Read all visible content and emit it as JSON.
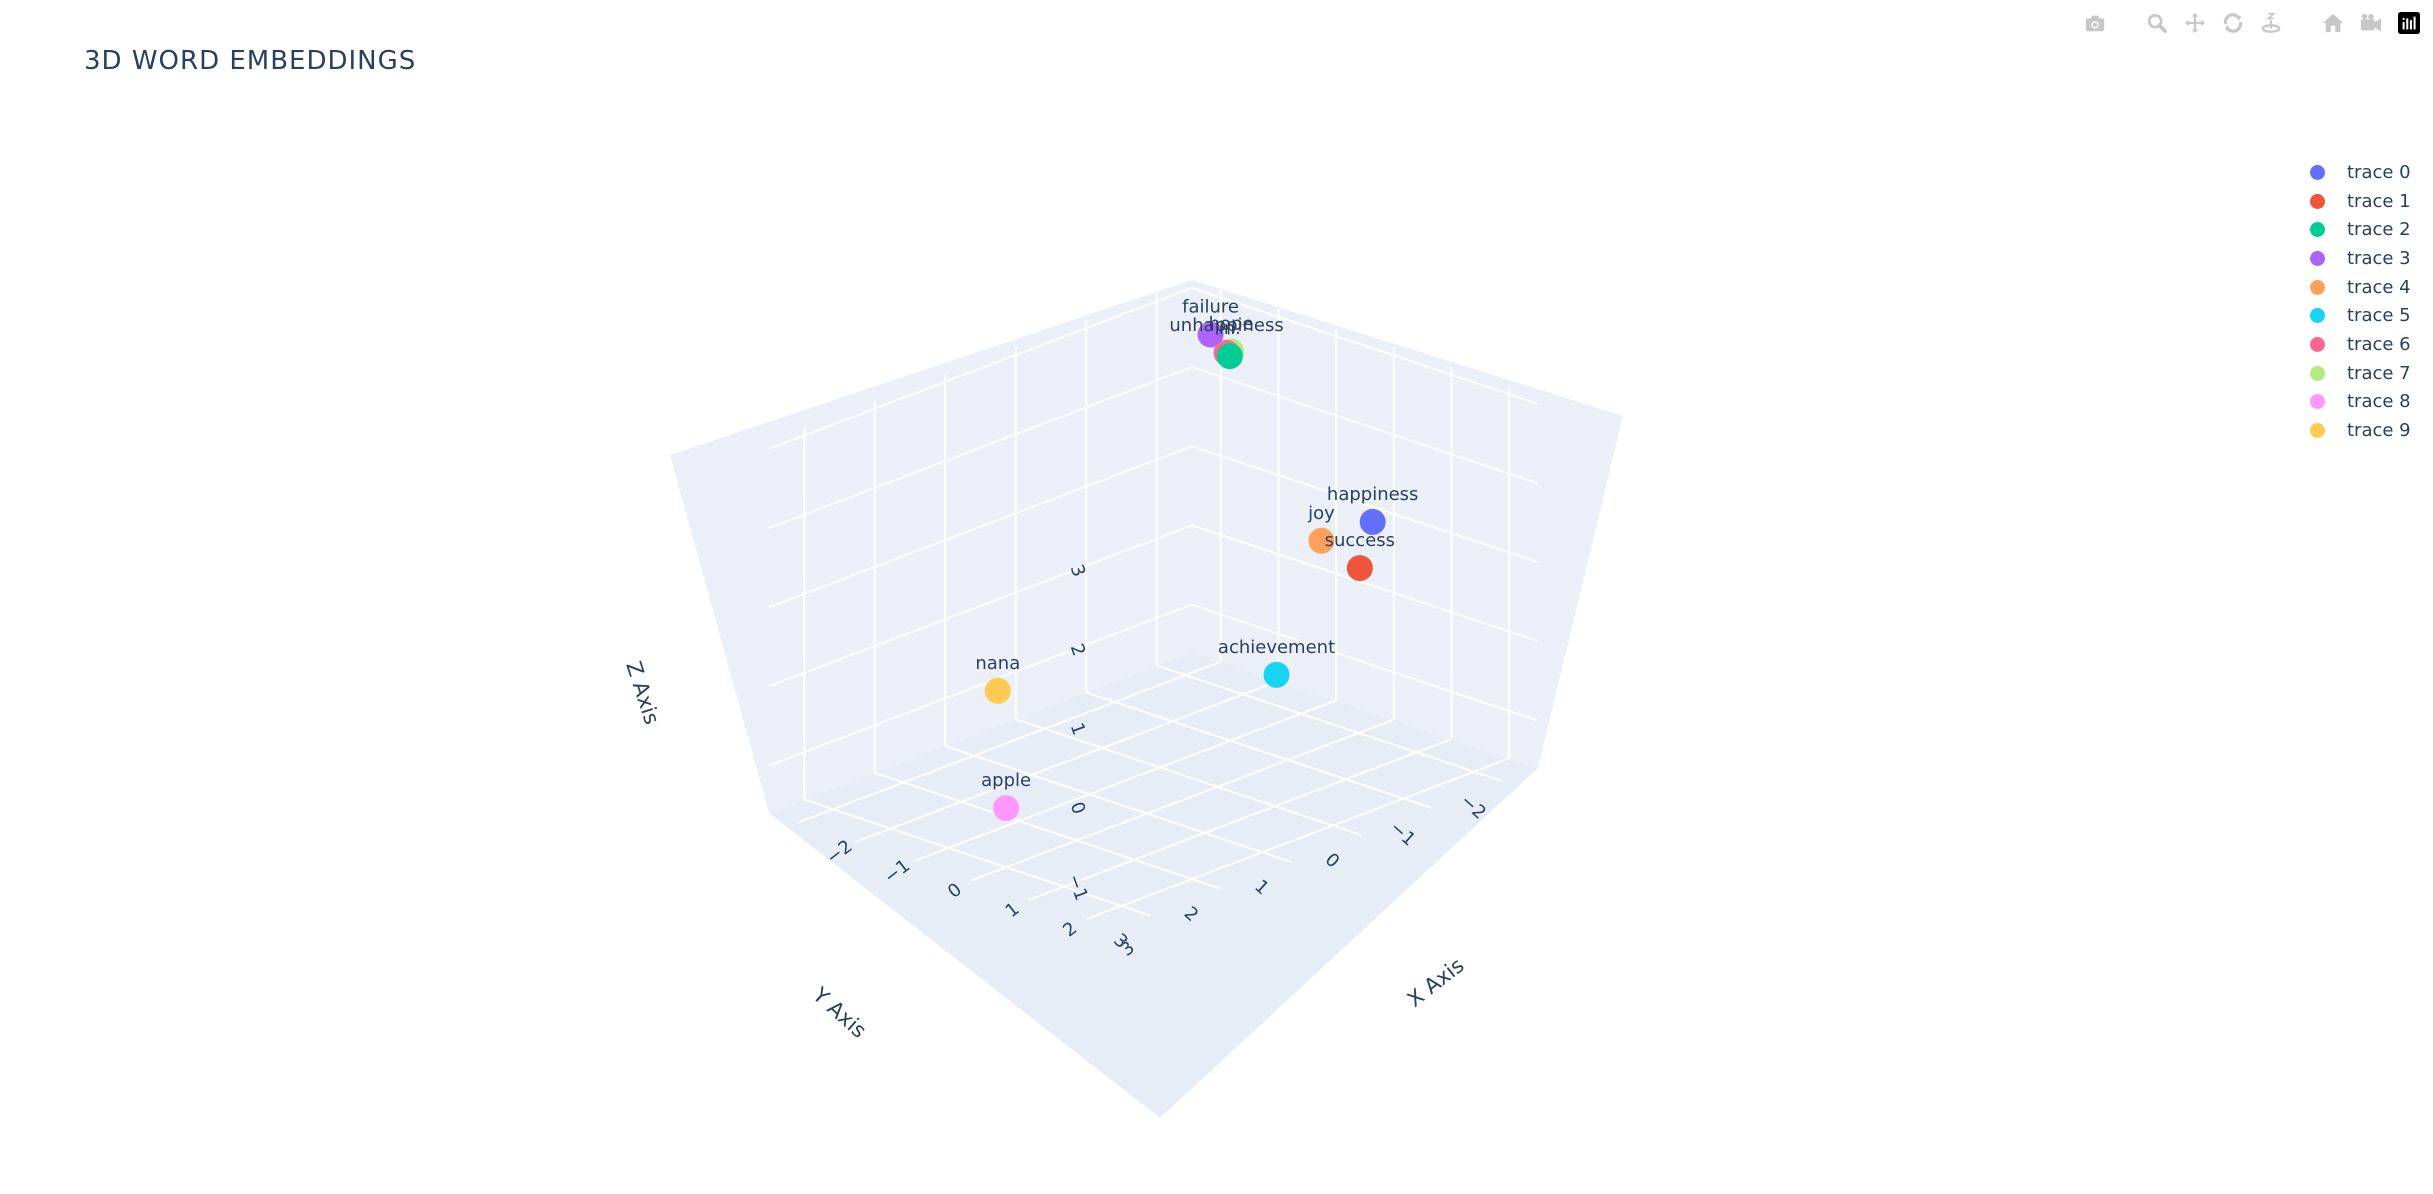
{
  "chart_data": {
    "type": "scatter3d",
    "title": "3D WORD EMBEDDINGS",
    "axes": {
      "x": {
        "label": "X Axis",
        "range": [
          -2.5,
          3.5
        ],
        "ticks": [
          -2,
          -1,
          0,
          1,
          2,
          3
        ],
        "tick_labels": [
          "−2",
          "−1",
          "0",
          "1",
          "2",
          "3"
        ]
      },
      "y": {
        "label": "Y Axis",
        "range": [
          -2.5,
          3.5
        ],
        "ticks": [
          -2,
          -1,
          0,
          1,
          2,
          3
        ],
        "tick_labels": [
          "−2",
          "−1",
          "0",
          "1",
          "2",
          "3"
        ]
      },
      "z": {
        "label": "Z Axis",
        "range": [
          -1.6,
          3.1
        ],
        "ticks": [
          -1,
          0,
          1,
          2,
          3
        ],
        "tick_labels": [
          "−1",
          "0",
          "1",
          "2",
          "3"
        ]
      }
    },
    "grid": true,
    "legend_position": "top-right",
    "series": [
      {
        "name": "trace 0",
        "text": "happiness",
        "color": "#636efa",
        "x": 1.0,
        "y": -2.2,
        "z": 1.0
      },
      {
        "name": "trace 1",
        "text": "success",
        "color": "#EF553B",
        "x": 2.0,
        "y": -1.2,
        "z": 1.0
      },
      {
        "name": "trace 2",
        "text": "in.",
        "color": "#00cc96",
        "x": -0.5,
        "y": -1.4,
        "z": 3.0
      },
      {
        "name": "trace 3",
        "text": "failure",
        "color": "#ab63fa",
        "x": -1.2,
        "y": -1.7,
        "z": 3.0
      },
      {
        "name": "trace 4",
        "text": "joy",
        "color": "#FFA15A",
        "x": 0.6,
        "y": -1.8,
        "z": 0.8
      },
      {
        "name": "trace 5",
        "text": "achievement",
        "color": "#19d3f3",
        "x": 1.9,
        "y": -0.1,
        "z": 0.0
      },
      {
        "name": "trace 6",
        "text": "unhappiness",
        "color": "#FF6692",
        "x": -0.8,
        "y": -1.6,
        "z": 2.9
      },
      {
        "name": "trace 7",
        "text": "hope",
        "color": "#B6E880",
        "x": -0.6,
        "y": -1.5,
        "z": 3.0
      },
      {
        "name": "trace 8",
        "text": "apple",
        "color": "#FF97FF",
        "x": -1.2,
        "y": 1.2,
        "z": -2.0
      },
      {
        "name": "trace 9",
        "text": "nana",
        "color": "#FECB52",
        "x": -2.2,
        "y": 0.5,
        "z": -1.0
      }
    ]
  },
  "modebar": {
    "icons": [
      "camera-icon",
      "zoom-icon",
      "pan-icon",
      "orbit-rotation-icon",
      "turntable-rotation-icon",
      "reset-camera-icon",
      "last-save-camera-icon",
      "plotly-logo-icon"
    ]
  }
}
